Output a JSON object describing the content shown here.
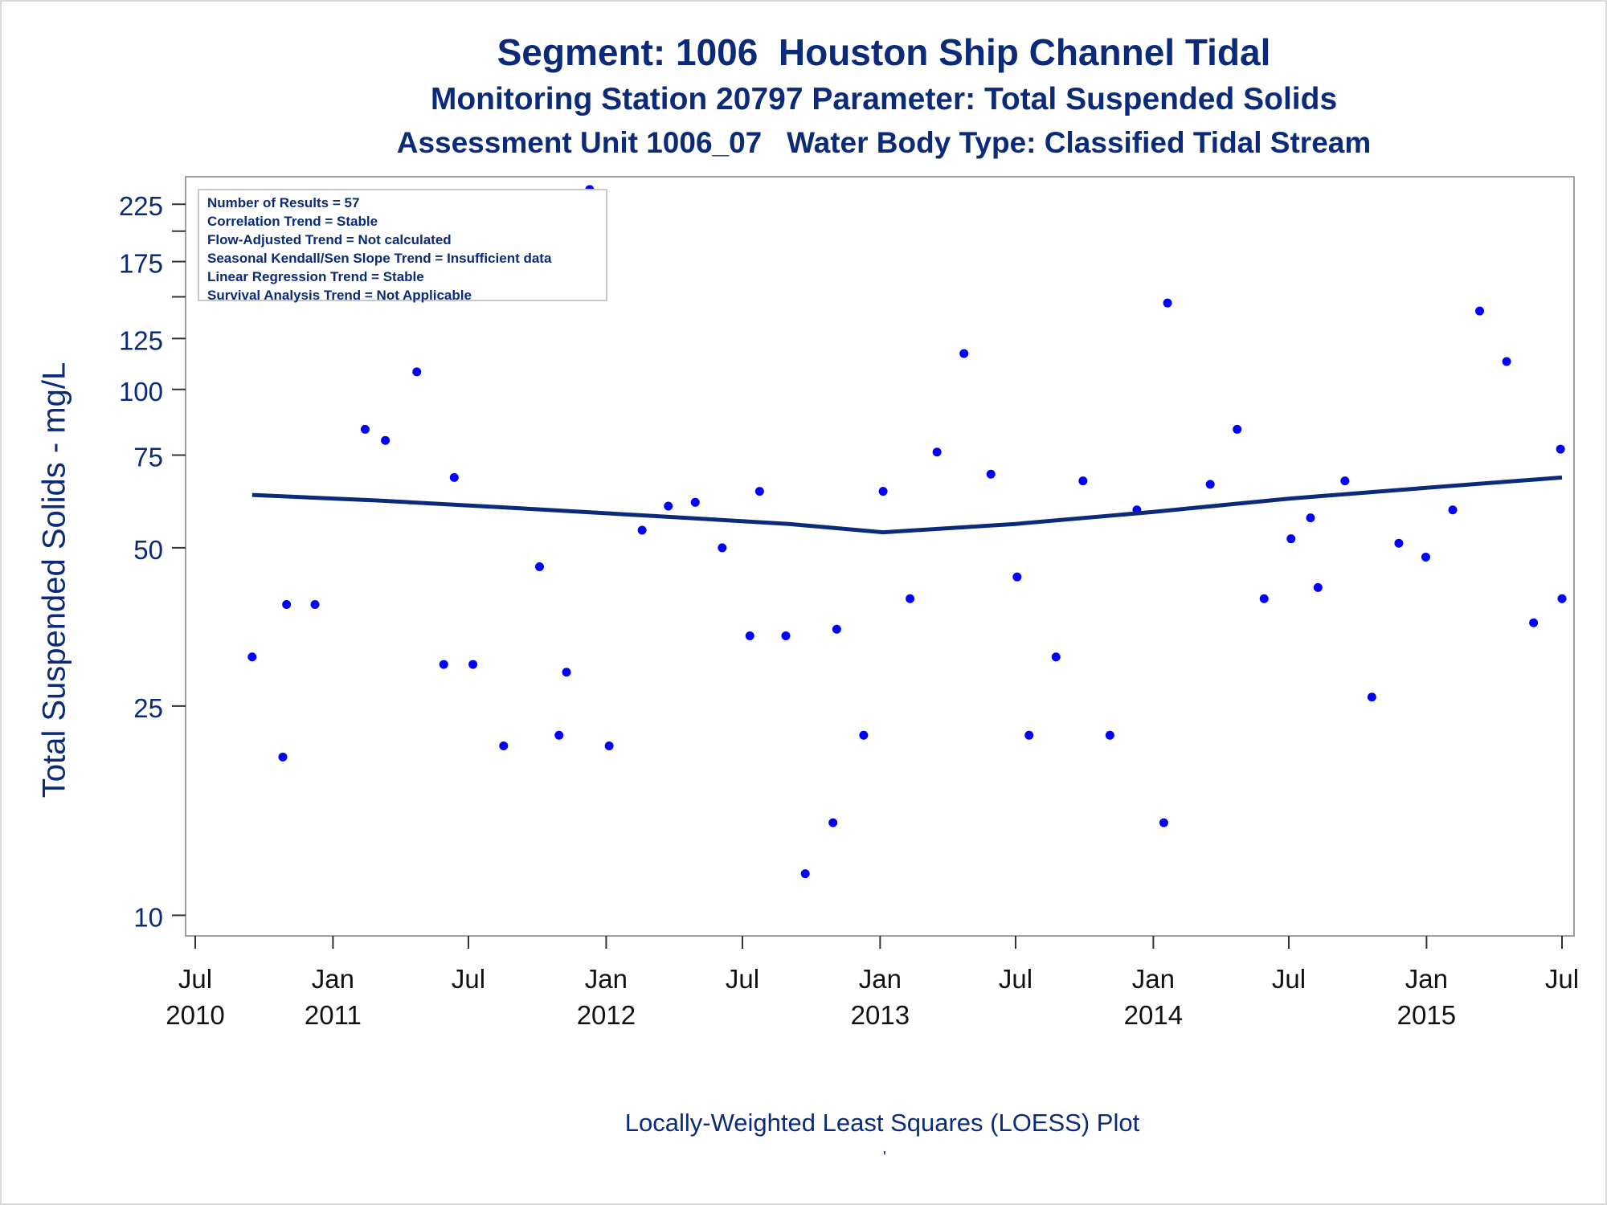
{
  "titles": {
    "line1": "Segment: 1006  Houston Ship Channel Tidal",
    "line2": "Monitoring Station 20797 Parameter: Total Suspended Solids",
    "line3": "Assessment Unit 1006_07   Water Body Type: Classified Tidal Stream"
  },
  "stats_box": [
    "Number of Results = 57",
    "Correlation Trend = Stable",
    "Flow-Adjusted Trend = Not calculated",
    "Seasonal Kendall/Sen Slope Trend = Insufficient data",
    "Linear Regression Trend = Stable",
    "Survival Analysis Trend = Not Applicable"
  ],
  "footer": {
    "text": "Locally-Weighted Least Squares (LOESS) Plot",
    "mark": "'"
  },
  "colors": {
    "text": "#0b2a7a",
    "points": "#0000ff",
    "loess_line": "#0b2a7a",
    "axis": "#333333",
    "frame": "#a0a0a0"
  },
  "chart_data": {
    "type": "scatter",
    "title": "Segment: 1006  Houston Ship Channel Tidal",
    "ylabel": "Total Suspended Solids - mg/L",
    "xlabel": "",
    "y_scale": "log",
    "ylim": [
      9.5,
      245
    ],
    "xlim": [
      "2010-07-01",
      "2015-07-01"
    ],
    "y_ticks": [
      10,
      25,
      50,
      75,
      100,
      125,
      175,
      225
    ],
    "y_minor_ticks": [
      150,
      200
    ],
    "x_ticks": [
      {
        "date": "2010-07-01",
        "month": "Jul",
        "year": "2010"
      },
      {
        "date": "2011-01-01",
        "month": "Jan",
        "year": "2011"
      },
      {
        "date": "2011-07-01",
        "month": "Jul",
        "year": ""
      },
      {
        "date": "2012-01-01",
        "month": "Jan",
        "year": "2012"
      },
      {
        "date": "2012-07-01",
        "month": "Jul",
        "year": ""
      },
      {
        "date": "2013-01-01",
        "month": "Jan",
        "year": "2013"
      },
      {
        "date": "2013-07-01",
        "month": "Jul",
        "year": ""
      },
      {
        "date": "2014-01-01",
        "month": "Jan",
        "year": "2014"
      },
      {
        "date": "2014-07-01",
        "month": "Jul",
        "year": ""
      },
      {
        "date": "2015-01-01",
        "month": "Jan",
        "year": "2015"
      },
      {
        "date": "2015-07-01",
        "month": "Jul",
        "year": ""
      }
    ],
    "grid": false,
    "series": [
      {
        "type": "scatter",
        "points": [
          {
            "x": "2010-09-15",
            "y": 31
          },
          {
            "x": "2010-10-26",
            "y": 20
          },
          {
            "x": "2010-10-31",
            "y": 39
          },
          {
            "x": "2010-12-08",
            "y": 39
          },
          {
            "x": "2011-01-09",
            "y": 177
          },
          {
            "x": "2011-02-13",
            "y": 84
          },
          {
            "x": "2011-03-12",
            "y": 80
          },
          {
            "x": "2011-04-23",
            "y": 108
          },
          {
            "x": "2011-05-29",
            "y": 30
          },
          {
            "x": "2011-06-12",
            "y": 68
          },
          {
            "x": "2011-07-07",
            "y": 30
          },
          {
            "x": "2011-08-17",
            "y": 21
          },
          {
            "x": "2011-10-04",
            "y": 46
          },
          {
            "x": "2011-10-30",
            "y": 22
          },
          {
            "x": "2011-11-09",
            "y": 29
          },
          {
            "x": "2011-12-10",
            "y": 240
          },
          {
            "x": "2012-01-05",
            "y": 21
          },
          {
            "x": "2012-02-18",
            "y": 54
          },
          {
            "x": "2012-03-24",
            "y": 60
          },
          {
            "x": "2012-04-29",
            "y": 61
          },
          {
            "x": "2012-06-04",
            "y": 50
          },
          {
            "x": "2012-07-11",
            "y": 34
          },
          {
            "x": "2012-07-24",
            "y": 64
          },
          {
            "x": "2012-08-28",
            "y": 34
          },
          {
            "x": "2012-09-23",
            "y": 12
          },
          {
            "x": "2012-10-30",
            "y": 15
          },
          {
            "x": "2012-11-04",
            "y": 35
          },
          {
            "x": "2012-12-10",
            "y": 22
          },
          {
            "x": "2013-01-05",
            "y": 64
          },
          {
            "x": "2013-02-10",
            "y": 40
          },
          {
            "x": "2013-03-18",
            "y": 76
          },
          {
            "x": "2013-04-23",
            "y": 117
          },
          {
            "x": "2013-05-29",
            "y": 69
          },
          {
            "x": "2013-07-03",
            "y": 44
          },
          {
            "x": "2013-07-19",
            "y": 22
          },
          {
            "x": "2013-08-24",
            "y": 31
          },
          {
            "x": "2013-09-29",
            "y": 67
          },
          {
            "x": "2013-11-04",
            "y": 22
          },
          {
            "x": "2013-12-10",
            "y": 59
          },
          {
            "x": "2014-01-15",
            "y": 15
          },
          {
            "x": "2014-01-20",
            "y": 146
          },
          {
            "x": "2014-03-18",
            "y": 66
          },
          {
            "x": "2014-04-23",
            "y": 84
          },
          {
            "x": "2014-05-29",
            "y": 40
          },
          {
            "x": "2014-07-04",
            "y": 52
          },
          {
            "x": "2014-07-30",
            "y": 57
          },
          {
            "x": "2014-08-09",
            "y": 42
          },
          {
            "x": "2014-09-14",
            "y": 67
          },
          {
            "x": "2014-10-20",
            "y": 26
          },
          {
            "x": "2014-11-25",
            "y": 51
          },
          {
            "x": "2014-12-31",
            "y": 48
          },
          {
            "x": "2015-02-05",
            "y": 59
          },
          {
            "x": "2015-03-13",
            "y": 141
          },
          {
            "x": "2015-04-18",
            "y": 113
          },
          {
            "x": "2015-05-24",
            "y": 36
          },
          {
            "x": "2015-06-29",
            "y": 77
          },
          {
            "x": "2015-07-01",
            "y": 40
          }
        ]
      },
      {
        "type": "line",
        "points": [
          {
            "x": "2010-09-15",
            "y": 63
          },
          {
            "x": "2011-03-01",
            "y": 61.5
          },
          {
            "x": "2011-09-01",
            "y": 59.5
          },
          {
            "x": "2012-03-01",
            "y": 57.5
          },
          {
            "x": "2012-09-01",
            "y": 55.5
          },
          {
            "x": "2013-01-05",
            "y": 53.5
          },
          {
            "x": "2013-07-01",
            "y": 55.5
          },
          {
            "x": "2014-01-01",
            "y": 58.5
          },
          {
            "x": "2014-07-01",
            "y": 62
          },
          {
            "x": "2015-01-01",
            "y": 65
          },
          {
            "x": "2015-07-01",
            "y": 68
          }
        ]
      }
    ]
  }
}
